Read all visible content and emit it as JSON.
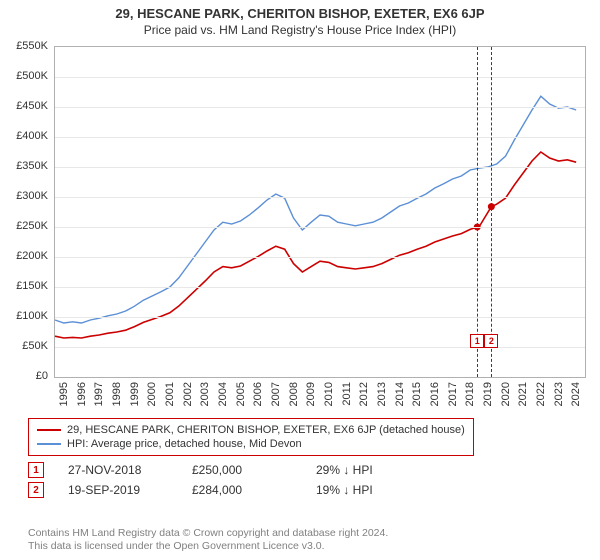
{
  "title": "29, HESCANE PARK, CHERITON BISHOP, EXETER, EX6 6JP",
  "subtitle": "Price paid vs. HM Land Registry's House Price Index (HPI)",
  "chart": {
    "type": "line",
    "background_color": "#ffffff",
    "grid_color": "#e8e8e8",
    "axis_color": "#b0b0b0",
    "x_range": [
      1995,
      2025
    ],
    "y_range": [
      0,
      550000
    ],
    "y_tick_step": 50000,
    "y_tick_prefix": "£",
    "y_tick_suffix": "K",
    "x_ticks": [
      1995,
      1996,
      1997,
      1998,
      1999,
      2000,
      2001,
      2002,
      2003,
      2004,
      2005,
      2006,
      2007,
      2008,
      2009,
      2010,
      2011,
      2012,
      2013,
      2014,
      2015,
      2016,
      2017,
      2018,
      2019,
      2020,
      2021,
      2022,
      2023,
      2024
    ],
    "series": [
      {
        "name": "HPI: Average price, detached house, Mid Devon",
        "color": "#5b8fd6",
        "line_width": 1.4,
        "data": [
          [
            1995.0,
            95000
          ],
          [
            1995.5,
            90000
          ],
          [
            1996.0,
            92000
          ],
          [
            1996.5,
            90000
          ],
          [
            1997.0,
            95000
          ],
          [
            1997.5,
            98000
          ],
          [
            1998.0,
            102000
          ],
          [
            1998.5,
            105000
          ],
          [
            1999.0,
            110000
          ],
          [
            1999.5,
            118000
          ],
          [
            2000.0,
            128000
          ],
          [
            2000.5,
            135000
          ],
          [
            2001.0,
            142000
          ],
          [
            2001.5,
            150000
          ],
          [
            2002.0,
            165000
          ],
          [
            2002.5,
            185000
          ],
          [
            2003.0,
            205000
          ],
          [
            2003.5,
            225000
          ],
          [
            2004.0,
            245000
          ],
          [
            2004.5,
            258000
          ],
          [
            2005.0,
            255000
          ],
          [
            2005.5,
            260000
          ],
          [
            2006.0,
            270000
          ],
          [
            2006.5,
            282000
          ],
          [
            2007.0,
            295000
          ],
          [
            2007.5,
            305000
          ],
          [
            2008.0,
            298000
          ],
          [
            2008.5,
            265000
          ],
          [
            2009.0,
            245000
          ],
          [
            2009.5,
            258000
          ],
          [
            2010.0,
            270000
          ],
          [
            2010.5,
            268000
          ],
          [
            2011.0,
            258000
          ],
          [
            2011.5,
            255000
          ],
          [
            2012.0,
            252000
          ],
          [
            2012.5,
            255000
          ],
          [
            2013.0,
            258000
          ],
          [
            2013.5,
            265000
          ],
          [
            2014.0,
            275000
          ],
          [
            2014.5,
            285000
          ],
          [
            2015.0,
            290000
          ],
          [
            2015.5,
            298000
          ],
          [
            2016.0,
            305000
          ],
          [
            2016.5,
            315000
          ],
          [
            2017.0,
            322000
          ],
          [
            2017.5,
            330000
          ],
          [
            2018.0,
            335000
          ],
          [
            2018.5,
            345000
          ],
          [
            2019.0,
            348000
          ],
          [
            2019.5,
            350000
          ],
          [
            2020.0,
            355000
          ],
          [
            2020.5,
            368000
          ],
          [
            2021.0,
            395000
          ],
          [
            2021.5,
            420000
          ],
          [
            2022.0,
            445000
          ],
          [
            2022.5,
            468000
          ],
          [
            2023.0,
            455000
          ],
          [
            2023.5,
            448000
          ],
          [
            2024.0,
            450000
          ],
          [
            2024.5,
            445000
          ]
        ]
      },
      {
        "name": "29, HESCANE PARK, CHERITON BISHOP, EXETER, EX6 6JP (detached house)",
        "color": "#cc0000",
        "line_width": 1.6,
        "data": [
          [
            1995.0,
            68000
          ],
          [
            1995.5,
            65000
          ],
          [
            1996.0,
            66000
          ],
          [
            1996.5,
            65000
          ],
          [
            1997.0,
            68000
          ],
          [
            1997.5,
            70000
          ],
          [
            1998.0,
            73000
          ],
          [
            1998.5,
            75000
          ],
          [
            1999.0,
            78000
          ],
          [
            1999.5,
            84000
          ],
          [
            2000.0,
            91000
          ],
          [
            2000.5,
            96000
          ],
          [
            2001.0,
            101000
          ],
          [
            2001.5,
            107000
          ],
          [
            2002.0,
            118000
          ],
          [
            2002.5,
            132000
          ],
          [
            2003.0,
            146000
          ],
          [
            2003.5,
            160000
          ],
          [
            2004.0,
            175000
          ],
          [
            2004.5,
            184000
          ],
          [
            2005.0,
            182000
          ],
          [
            2005.5,
            185000
          ],
          [
            2006.0,
            193000
          ],
          [
            2006.5,
            201000
          ],
          [
            2007.0,
            210000
          ],
          [
            2007.5,
            218000
          ],
          [
            2008.0,
            213000
          ],
          [
            2008.5,
            189000
          ],
          [
            2009.0,
            175000
          ],
          [
            2009.5,
            184000
          ],
          [
            2010.0,
            193000
          ],
          [
            2010.5,
            191000
          ],
          [
            2011.0,
            184000
          ],
          [
            2011.5,
            182000
          ],
          [
            2012.0,
            180000
          ],
          [
            2012.5,
            182000
          ],
          [
            2013.0,
            184000
          ],
          [
            2013.5,
            189000
          ],
          [
            2014.0,
            196000
          ],
          [
            2014.5,
            203000
          ],
          [
            2015.0,
            207000
          ],
          [
            2015.5,
            213000
          ],
          [
            2016.0,
            218000
          ],
          [
            2016.5,
            225000
          ],
          [
            2017.0,
            230000
          ],
          [
            2017.5,
            235000
          ],
          [
            2018.0,
            239000
          ],
          [
            2018.5,
            246000
          ],
          [
            2018.9,
            250000
          ],
          [
            2019.0,
            250000
          ],
          [
            2019.7,
            284000
          ],
          [
            2020.0,
            288000
          ],
          [
            2020.5,
            298000
          ],
          [
            2021.0,
            320000
          ],
          [
            2021.5,
            340000
          ],
          [
            2022.0,
            360000
          ],
          [
            2022.5,
            375000
          ],
          [
            2023.0,
            365000
          ],
          [
            2023.5,
            360000
          ],
          [
            2024.0,
            362000
          ],
          [
            2024.5,
            358000
          ]
        ]
      }
    ],
    "sale_markers": [
      {
        "label": "1",
        "x": 2018.9,
        "y": 60000,
        "dot_y": 250000
      },
      {
        "label": "2",
        "x": 2019.7,
        "y": 60000,
        "dot_y": 284000
      }
    ]
  },
  "legend": {
    "items": [
      {
        "color": "#cc0000",
        "label": "29, HESCANE PARK, CHERITON BISHOP, EXETER, EX6 6JP (detached house)"
      },
      {
        "color": "#5b8fd6",
        "label": "HPI: Average price, detached house, Mid Devon"
      }
    ]
  },
  "sales_table": [
    {
      "marker": "1",
      "date": "27-NOV-2018",
      "price": "£250,000",
      "change": "29% ↓ HPI"
    },
    {
      "marker": "2",
      "date": "19-SEP-2019",
      "price": "£284,000",
      "change": "19% ↓ HPI"
    }
  ],
  "footer_line1": "Contains HM Land Registry data © Crown copyright and database right 2024.",
  "footer_line2": "This data is licensed under the Open Government Licence v3.0."
}
